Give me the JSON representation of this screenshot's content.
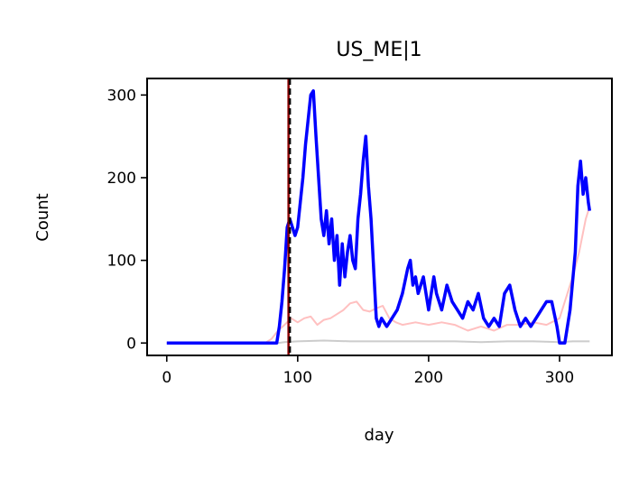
{
  "chart_data": {
    "type": "line",
    "title": "US_ME|1",
    "xlabel": "day",
    "ylabel": "Count",
    "xlim": [
      -15,
      340
    ],
    "ylim": [
      -15,
      320
    ],
    "xticks": [
      0,
      100,
      200,
      300
    ],
    "yticks": [
      0,
      100,
      200,
      300
    ],
    "grid": false,
    "vlines": [
      {
        "x": 93,
        "color": "#8b0000",
        "style": "solid"
      },
      {
        "x": 94,
        "color": "#000000",
        "style": "dashed"
      }
    ],
    "series": [
      {
        "color": "#cccccc",
        "x": [
          0,
          85,
          90,
          100,
          120,
          140,
          160,
          180,
          200,
          220,
          240,
          260,
          280,
          300,
          310,
          320,
          323
        ],
        "y": [
          0,
          0,
          1,
          2,
          3,
          2,
          2,
          2,
          2,
          2,
          1,
          2,
          2,
          1,
          2,
          2,
          2
        ]
      },
      {
        "color": "#ffc0c0",
        "x": [
          0,
          75,
          80,
          85,
          90,
          95,
          100,
          105,
          110,
          115,
          120,
          125,
          130,
          135,
          140,
          145,
          150,
          155,
          160,
          165,
          170,
          175,
          180,
          190,
          200,
          210,
          220,
          230,
          240,
          250,
          260,
          270,
          280,
          290,
          300,
          305,
          310,
          315,
          320,
          323
        ],
        "y": [
          0,
          0,
          5,
          15,
          22,
          30,
          25,
          30,
          32,
          22,
          28,
          30,
          35,
          40,
          48,
          50,
          40,
          38,
          42,
          45,
          30,
          25,
          22,
          25,
          22,
          25,
          22,
          15,
          20,
          15,
          22,
          22,
          25,
          22,
          30,
          55,
          80,
          110,
          150,
          165
        ]
      },
      {
        "color": "#0000ff",
        "x": [
          0,
          80,
          84,
          86,
          88,
          90,
          92,
          94,
          96,
          98,
          100,
          102,
          104,
          106,
          108,
          110,
          112,
          114,
          116,
          118,
          120,
          122,
          124,
          126,
          128,
          130,
          132,
          134,
          136,
          138,
          140,
          142,
          144,
          146,
          148,
          150,
          152,
          154,
          156,
          158,
          160,
          162,
          164,
          168,
          172,
          176,
          180,
          184,
          186,
          188,
          190,
          192,
          196,
          200,
          204,
          206,
          210,
          214,
          218,
          222,
          226,
          230,
          234,
          238,
          242,
          246,
          250,
          254,
          258,
          262,
          266,
          270,
          274,
          278,
          282,
          286,
          290,
          294,
          298,
          300,
          304,
          308,
          312,
          314,
          316,
          318,
          320,
          322,
          323
        ],
        "y": [
          0,
          0,
          0,
          20,
          50,
          90,
          140,
          150,
          140,
          130,
          140,
          170,
          200,
          240,
          270,
          300,
          305,
          250,
          200,
          150,
          130,
          160,
          120,
          150,
          100,
          130,
          70,
          120,
          80,
          110,
          130,
          100,
          90,
          150,
          180,
          220,
          250,
          190,
          150,
          90,
          30,
          20,
          30,
          20,
          30,
          40,
          60,
          90,
          100,
          70,
          80,
          60,
          80,
          40,
          80,
          60,
          40,
          70,
          50,
          40,
          30,
          50,
          40,
          60,
          30,
          20,
          30,
          20,
          60,
          70,
          40,
          20,
          30,
          20,
          30,
          40,
          50,
          50,
          20,
          0,
          0,
          40,
          110,
          190,
          220,
          180,
          200,
          170,
          160
        ]
      }
    ]
  }
}
